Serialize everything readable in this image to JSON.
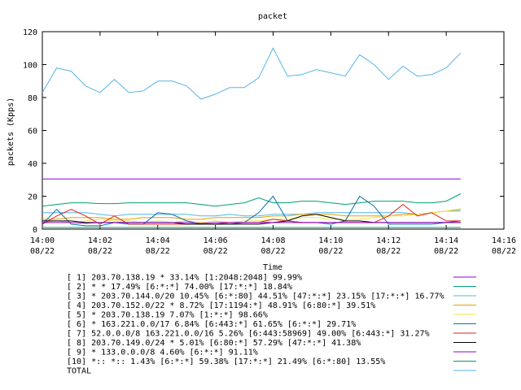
{
  "chart_data": {
    "type": "line",
    "title": "packet",
    "xlabel": "Time",
    "ylabel": "packets (Kpps)",
    "ylim": [
      0,
      120
    ],
    "yticks": [
      0,
      20,
      40,
      60,
      80,
      100,
      120
    ],
    "xlim": [
      "14:00",
      "14:16"
    ],
    "xticks": [
      {
        "time": "14:00",
        "date": "08/22"
      },
      {
        "time": "14:02",
        "date": "08/22"
      },
      {
        "time": "14:04",
        "date": "08/22"
      },
      {
        "time": "14:06",
        "date": "08/22"
      },
      {
        "time": "14:08",
        "date": "08/22"
      },
      {
        "time": "14:10",
        "date": "08/22"
      },
      {
        "time": "14:12",
        "date": "08/22"
      },
      {
        "time": "14:14",
        "date": "08/22"
      },
      {
        "time": "14:16",
        "date": "08/22"
      }
    ],
    "grid": false,
    "legend_position": "bottom",
    "x": [
      "14:00:00",
      "14:00:30",
      "14:01:00",
      "14:01:30",
      "14:02:00",
      "14:02:30",
      "14:03:00",
      "14:03:30",
      "14:04:00",
      "14:04:30",
      "14:05:00",
      "14:05:30",
      "14:06:00",
      "14:06:30",
      "14:07:00",
      "14:07:30",
      "14:08:00",
      "14:08:30",
      "14:09:00",
      "14:09:30",
      "14:10:00",
      "14:10:30",
      "14:11:00",
      "14:11:30",
      "14:12:00",
      "14:12:30",
      "14:13:00",
      "14:13:30",
      "14:14:00",
      "14:14:30"
    ],
    "series": [
      {
        "name": "[ 1] 203.70.138.19 * 33.14%  [1:2048:2048] 99.99%",
        "color": "#9400d3",
        "values": [
          30.5,
          30.5,
          30.5,
          30.5,
          30.5,
          30.5,
          30.5,
          30.5,
          30.5,
          30.5,
          30.5,
          30.5,
          30.5,
          30.5,
          30.5,
          30.5,
          30.5,
          30.5,
          30.5,
          30.5,
          30.5,
          30.5,
          30.5,
          30.5,
          30.5,
          30.5,
          30.5,
          30.5,
          30.5,
          30.5
        ]
      },
      {
        "name": "[ 2] * * 17.49%  [6:*:*] 74.00% [17:*:*] 18.84%",
        "color": "#009e73",
        "values": [
          14,
          15,
          16,
          16,
          15.5,
          15.5,
          16,
          16,
          16,
          16,
          16,
          15,
          14,
          15,
          16,
          19,
          16,
          16,
          17,
          17,
          16,
          15,
          16,
          17,
          17,
          17,
          16,
          16,
          17,
          21.5
        ]
      },
      {
        "name": "[ 3] * 203.70.144.0/20 10.45%  [6:*:80] 44.51% [47:*:*] 23.15% [17:*:*] 16.77%",
        "color": "#56b4e9",
        "values": [
          10,
          10,
          10,
          10,
          9,
          8,
          9,
          9,
          9,
          9,
          9,
          8,
          8,
          9,
          8,
          8,
          9,
          9,
          9,
          10,
          10,
          10,
          10,
          10,
          10,
          10,
          9,
          10,
          11,
          11
        ]
      },
      {
        "name": "[ 4] 203.70.152.0/22 * 8.72%  [17:1194:*] 48.91% [6:80:*] 39.51%",
        "color": "#e69f00",
        "values": [
          6,
          6,
          7,
          7,
          7,
          6,
          6,
          7,
          7,
          7,
          6,
          6,
          7,
          7,
          7,
          7,
          8,
          8,
          9,
          9,
          9,
          8,
          8,
          8,
          8,
          9,
          9,
          10,
          11,
          12
        ]
      },
      {
        "name": "[ 5] * 203.70.138.19 7.07%  [1:*:*] 98.66%",
        "color": "#f0e442",
        "values": [
          4,
          5,
          4,
          5,
          6,
          5,
          5,
          4,
          5,
          4,
          5,
          4,
          5,
          4,
          5,
          5,
          6,
          6,
          7,
          7,
          6,
          6,
          6,
          7,
          8,
          8,
          9,
          10,
          11,
          12.5
        ]
      },
      {
        "name": "[ 6] * 163.221.0.0/17 6.84%  [6:443:*] 61.65% [6:*:*] 29.71%",
        "color": "#0072b2",
        "values": [
          3,
          12,
          3,
          2,
          2,
          4,
          3,
          3,
          10,
          9,
          5,
          3,
          3,
          3,
          4,
          10,
          20,
          5,
          4,
          4,
          3,
          5,
          20,
          14,
          3,
          3,
          3,
          3,
          4,
          5
        ]
      },
      {
        "name": "[ 7] 52.0.0.0/8 163.221.0.0/16 5.26%  [6:443:58969] 49.00% [6:443:*] 31.27%",
        "color": "#e51e10",
        "values": [
          3,
          8,
          12,
          8,
          3,
          8,
          3,
          3,
          3,
          3,
          3,
          3,
          3,
          4,
          4,
          4,
          6,
          5,
          4,
          4,
          4,
          4,
          4,
          4,
          8,
          15,
          8,
          10,
          5,
          5
        ]
      },
      {
        "name": "[ 8] 203.70.149.0/24 * 5.01%  [6:80:*] 57.29% [47:*:*] 41.38%",
        "color": "#000000",
        "values": [
          5,
          5,
          5,
          4,
          4,
          4,
          4,
          4,
          4,
          4,
          3,
          3,
          3,
          3,
          3,
          3,
          4,
          5,
          8,
          9,
          7,
          5,
          5,
          4,
          4,
          4,
          4,
          4,
          4,
          4
        ]
      },
      {
        "name": "[ 9] * 133.0.0.0/8 4.60%  [6:*:*] 91.11%",
        "color": "#9400d3",
        "values": [
          4,
          4,
          4,
          3.5,
          4,
          4,
          4,
          4,
          4,
          4,
          4,
          3.5,
          4,
          4,
          4,
          4,
          4,
          4,
          4,
          4,
          4,
          4,
          4,
          4,
          4,
          4,
          4,
          4,
          4,
          4
        ]
      },
      {
        "name": "[10] *:: *:: 1.43%  [6:*:*] 59.38% [17:*:*] 21.49% [6:*:80] 13.55%",
        "color": "#009e73",
        "values": [
          1,
          1,
          1,
          1,
          1,
          1,
          1,
          1,
          1,
          1,
          1,
          1,
          1,
          1,
          1,
          1,
          1,
          1,
          1,
          1,
          1,
          1,
          1,
          1,
          1,
          1,
          1,
          1,
          1,
          1
        ]
      },
      {
        "name": "TOTAL",
        "color": "#56b4e9",
        "values": [
          83,
          98,
          96,
          87,
          83,
          91,
          83,
          84,
          90,
          90,
          87,
          79,
          82,
          86,
          86,
          92,
          110,
          93,
          94,
          97,
          95,
          93,
          106,
          100,
          91,
          99,
          93,
          94,
          98,
          107
        ]
      }
    ]
  }
}
